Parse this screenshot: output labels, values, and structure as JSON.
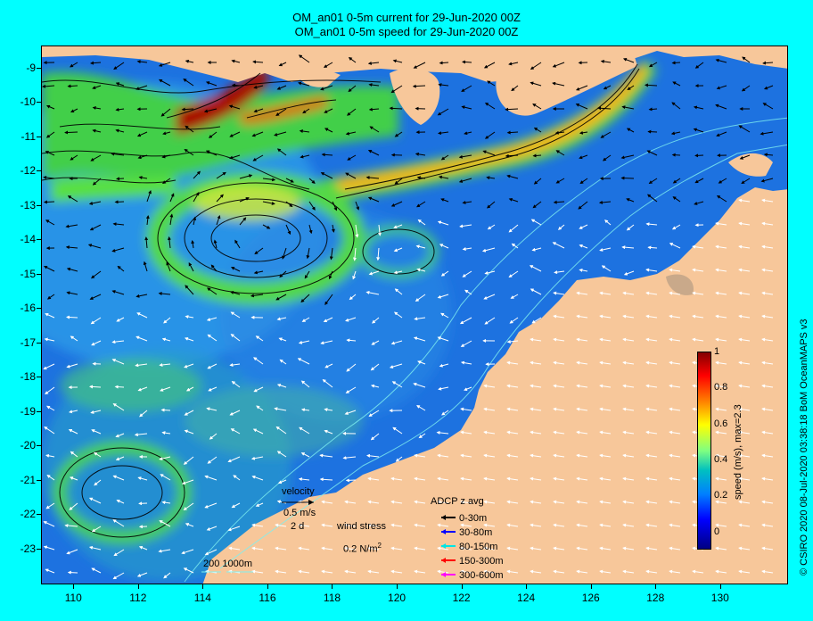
{
  "title_line1": "OM_an01 0-5m current for 29-Jun-2020 00Z",
  "title_line2": "OM_an01 0-5m speed for 29-Jun-2020 00Z",
  "credit": "© CSIRO 2020  08-Jul-2020 03:38:18 BoM OceanMAPS v3",
  "axes": {
    "x_ticks": [
      "110",
      "112",
      "114",
      "116",
      "118",
      "120",
      "122",
      "124",
      "126",
      "128",
      "130"
    ],
    "y_ticks": [
      "-9",
      "-10",
      "-11",
      "-12",
      "-13",
      "-14",
      "-15",
      "-16",
      "-17",
      "-18",
      "-19",
      "-20",
      "-21",
      "-22",
      "-23"
    ],
    "lon_range": [
      109,
      132.1
    ],
    "lat_range": [
      -8.35,
      -24.05
    ]
  },
  "legend": {
    "velocity_title": "velocity",
    "velocity_scale": "0.5 m/s",
    "velocity_days": "2 d",
    "wind_title": "wind stress",
    "wind_scale": "0.2 N/m",
    "wind_exp": "2",
    "bathy_label": "200  1000m",
    "adcp_title": "ADCP z avg",
    "adcp_items": [
      {
        "label": "0-30m",
        "color": "#000000"
      },
      {
        "label": "30-80m",
        "color": "#0000ff"
      },
      {
        "label": "80-150m",
        "color": "#00e5e5"
      },
      {
        "label": "150-300m",
        "color": "#ff0000"
      },
      {
        "label": "300-600m",
        "color": "#ff00ff"
      }
    ]
  },
  "colorbar": {
    "label": "speed (m/s), max=2.3",
    "ticks": [
      "1",
      "0.8",
      "0.6",
      "0.4",
      "0.2",
      "0"
    ],
    "tick_values": [
      1,
      0.8,
      0.6,
      0.4,
      0.2,
      0
    ],
    "colors": [
      "#800000",
      "#ff0000",
      "#ff8000",
      "#ffff00",
      "#80ff80",
      "#00c0c0",
      "#0080ff",
      "#0000ff",
      "#000080"
    ]
  },
  "colors": {
    "background": "#00ffff",
    "land": "#f7c79a",
    "ocean_low": "#1e6fe0",
    "current_mid": "#3ddc3a",
    "current_high": "#ffff00",
    "current_max": "#a01000"
  }
}
